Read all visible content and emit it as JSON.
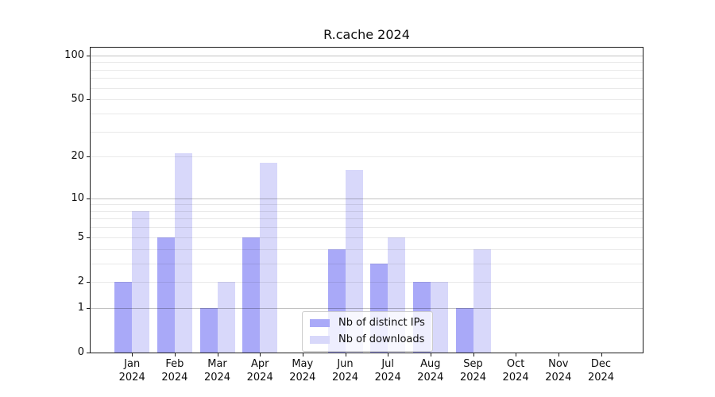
{
  "figure": {
    "title": "R.cache 2024",
    "background": "#ffffff"
  },
  "chart_data": {
    "type": "bar",
    "title": "R.cache 2024",
    "categories": [
      "Jan 2024",
      "Feb 2024",
      "Mar 2024",
      "Apr 2024",
      "May 2024",
      "Jun 2024",
      "Jul 2024",
      "Aug 2024",
      "Sep 2024",
      "Oct 2024",
      "Nov 2024",
      "Dec 2024"
    ],
    "series": [
      {
        "name": "Nb of distinct IPs",
        "color": "#a9a9f8",
        "values": [
          2,
          5,
          1,
          5,
          0,
          4,
          3,
          2,
          1,
          0,
          0,
          0
        ]
      },
      {
        "name": "Nb of downloads",
        "color": "#d8d8fa",
        "values": [
          8,
          21,
          2,
          18,
          0,
          16,
          5,
          2,
          4,
          0,
          0,
          0
        ]
      }
    ],
    "xlabel": "",
    "ylabel": "",
    "yscale": "log1p",
    "ylim": [
      0,
      113
    ],
    "yticks": [
      100,
      50,
      20,
      10,
      5,
      2,
      1,
      0
    ],
    "major_gridlines": [
      1,
      10,
      100
    ],
    "minor_gridlines": [
      2,
      3,
      4,
      5,
      6,
      7,
      8,
      9,
      20,
      30,
      40,
      50,
      60,
      70,
      80,
      90
    ],
    "grid": true,
    "legend_position": "lower center"
  },
  "x_axis": {
    "months": [
      {
        "month": "Jan",
        "year": "2024"
      },
      {
        "month": "Feb",
        "year": "2024"
      },
      {
        "month": "Mar",
        "year": "2024"
      },
      {
        "month": "Apr",
        "year": "2024"
      },
      {
        "month": "May",
        "year": "2024"
      },
      {
        "month": "Jun",
        "year": "2024"
      },
      {
        "month": "Jul",
        "year": "2024"
      },
      {
        "month": "Aug",
        "year": "2024"
      },
      {
        "month": "Sep",
        "year": "2024"
      },
      {
        "month": "Oct",
        "year": "2024"
      },
      {
        "month": "Nov",
        "year": "2024"
      },
      {
        "month": "Dec",
        "year": "2024"
      }
    ]
  },
  "y_axis": {
    "tick_labels": [
      "100",
      "50",
      "20",
      "10",
      "5",
      "2",
      "1",
      "0"
    ]
  },
  "legend": {
    "items": [
      {
        "label": "Nb of distinct IPs",
        "color": "#a9a9f8"
      },
      {
        "label": "Nb of downloads",
        "color": "#d8d8fa"
      }
    ]
  },
  "colors": {
    "distinct_ips_bar": "#a9a9f8",
    "downloads_bar": "#d8d8fa",
    "major_grid": "#c3c3c3",
    "minor_grid": "#e9e9e9",
    "spine": "#1c1c1c",
    "legend_border": "#cccccc"
  }
}
